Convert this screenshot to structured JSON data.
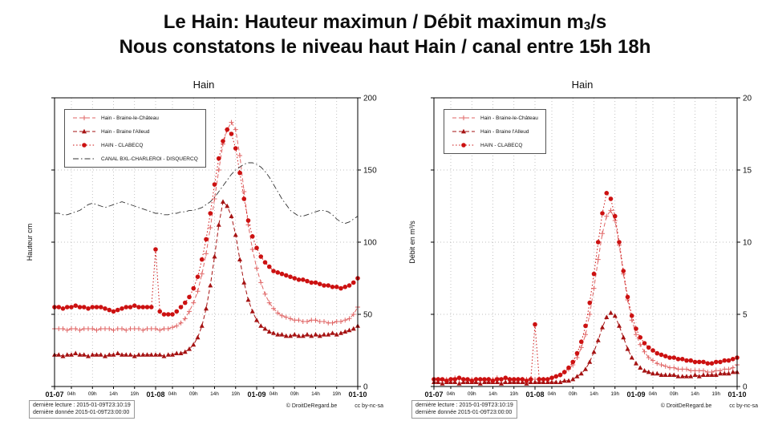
{
  "page": {
    "title_line1": {
      "prefix": "Le Hain: Hauteur maximun  / Débit maximun m",
      "sub": "3",
      "suffix": "/s"
    },
    "title_line2": "Nous constatons le niveau haut Hain / canal entre 15h 18h"
  },
  "footer": {
    "last_read": "dernière lecture : 2015-01-09T23:10:19",
    "last_data": "dernière donnée  2015-01-09T23:00:00",
    "copyright": "© DroitDeRegard.be",
    "license": "cc by-nc-sa"
  },
  "chart_data": [
    {
      "type": "line",
      "title": "Hain",
      "xlabel": "",
      "ylabel": "Hauteur cm",
      "ylim": [
        0,
        200
      ],
      "yticks": [
        0,
        50,
        100,
        150,
        200
      ],
      "xlim": [
        0,
        72
      ],
      "grid": true,
      "legend_position": "upper-left",
      "xticks": [
        {
          "t": 0,
          "label": "01-07",
          "day": true
        },
        {
          "t": 4,
          "label": "04h"
        },
        {
          "t": 9,
          "label": "09h"
        },
        {
          "t": 14,
          "label": "14h"
        },
        {
          "t": 19,
          "label": "19h"
        },
        {
          "t": 24,
          "label": "01-08",
          "day": true
        },
        {
          "t": 28,
          "label": "04h"
        },
        {
          "t": 33,
          "label": "09h"
        },
        {
          "t": 38,
          "label": "14h"
        },
        {
          "t": 43,
          "label": "19h"
        },
        {
          "t": 48,
          "label": "01-09",
          "day": true
        },
        {
          "t": 52,
          "label": "04h"
        },
        {
          "t": 57,
          "label": "09h"
        },
        {
          "t": 62,
          "label": "14h"
        },
        {
          "t": 67,
          "label": "19h"
        },
        {
          "t": 72,
          "label": "01-10",
          "day": true
        }
      ],
      "series": [
        {
          "name": "Hain - Braine-le-Château",
          "color": "#e06666",
          "line": "dashed",
          "marker": "plus",
          "values": [
            40,
            40,
            40,
            39,
            40,
            40,
            39,
            40,
            40,
            40,
            39,
            40,
            40,
            40,
            39,
            40,
            40,
            39,
            40,
            40,
            40,
            39,
            40,
            40,
            40,
            39,
            40,
            40,
            41,
            42,
            44,
            47,
            52,
            58,
            66,
            78,
            92,
            110,
            130,
            150,
            168,
            178,
            183,
            178,
            160,
            135,
            112,
            95,
            82,
            72,
            64,
            58,
            54,
            51,
            49,
            48,
            47,
            46,
            46,
            45,
            45,
            46,
            46,
            45,
            45,
            44,
            44,
            45,
            45,
            46,
            47,
            50,
            55
          ]
        },
        {
          "name": "Hain - Braine l'Alleud",
          "color": "#a51212",
          "line": "dashed",
          "marker": "triangle",
          "values": [
            22,
            22,
            21,
            22,
            22,
            23,
            22,
            22,
            21,
            22,
            22,
            22,
            21,
            22,
            22,
            23,
            22,
            22,
            22,
            21,
            22,
            22,
            22,
            22,
            22,
            22,
            21,
            22,
            22,
            23,
            23,
            24,
            26,
            29,
            34,
            42,
            54,
            70,
            90,
            112,
            128,
            125,
            118,
            105,
            88,
            72,
            60,
            52,
            46,
            42,
            40,
            38,
            37,
            36,
            36,
            35,
            35,
            36,
            35,
            35,
            36,
            35,
            36,
            35,
            36,
            36,
            37,
            36,
            37,
            38,
            39,
            40,
            42
          ]
        },
        {
          "name": "HAIN - CLABECQ",
          "color": "#cc1111",
          "line": "dotted",
          "marker": "circle",
          "values": [
            55,
            55,
            54,
            55,
            55,
            56,
            55,
            55,
            54,
            55,
            55,
            55,
            54,
            53,
            52,
            53,
            54,
            55,
            55,
            56,
            55,
            55,
            55,
            55,
            95,
            52,
            50,
            50,
            50,
            52,
            55,
            58,
            62,
            68,
            76,
            88,
            102,
            120,
            140,
            158,
            170,
            178,
            175,
            165,
            148,
            130,
            115,
            104,
            96,
            90,
            86,
            83,
            80,
            79,
            78,
            77,
            76,
            75,
            74,
            74,
            73,
            72,
            72,
            71,
            70,
            70,
            69,
            69,
            68,
            69,
            70,
            72,
            75
          ]
        },
        {
          "name": "CANAL BXL-CHARLEROI - DISQUERCQ",
          "color": "#333333",
          "line": "dashdot",
          "marker": "none",
          "values": [
            120,
            120,
            119,
            119,
            120,
            121,
            122,
            124,
            126,
            127,
            126,
            125,
            124,
            125,
            126,
            127,
            128,
            127,
            126,
            125,
            124,
            123,
            122,
            121,
            120,
            120,
            119,
            119,
            120,
            120,
            121,
            121,
            122,
            122,
            123,
            124,
            126,
            128,
            131,
            135,
            139,
            143,
            147,
            150,
            152,
            154,
            155,
            155,
            154,
            152,
            149,
            145,
            140,
            135,
            130,
            126,
            122,
            120,
            118,
            118,
            119,
            120,
            121,
            122,
            122,
            121,
            119,
            116,
            114,
            113,
            114,
            116,
            118
          ]
        }
      ]
    },
    {
      "type": "line",
      "title": "Hain",
      "xlabel": "",
      "ylabel": "Débit en m³/s",
      "ylim": [
        0,
        20
      ],
      "yticks": [
        0,
        5,
        10,
        15,
        20
      ],
      "xlim": [
        0,
        72
      ],
      "grid": true,
      "legend_position": "upper-left",
      "xticks": [
        {
          "t": 0,
          "label": "01-07",
          "day": true
        },
        {
          "t": 4,
          "label": "04h"
        },
        {
          "t": 9,
          "label": "09h"
        },
        {
          "t": 14,
          "label": "14h"
        },
        {
          "t": 19,
          "label": "19h"
        },
        {
          "t": 24,
          "label": "01-08",
          "day": true
        },
        {
          "t": 28,
          "label": "04h"
        },
        {
          "t": 33,
          "label": "09h"
        },
        {
          "t": 38,
          "label": "14h"
        },
        {
          "t": 43,
          "label": "19h"
        },
        {
          "t": 48,
          "label": "01-09",
          "day": true
        },
        {
          "t": 52,
          "label": "04h"
        },
        {
          "t": 57,
          "label": "09h"
        },
        {
          "t": 62,
          "label": "14h"
        },
        {
          "t": 67,
          "label": "19h"
        },
        {
          "t": 72,
          "label": "01-10",
          "day": true
        }
      ],
      "series": [
        {
          "name": "Hain - Braine-le-Château",
          "color": "#e06666",
          "line": "dashed",
          "marker": "plus",
          "values": [
            0.5,
            0.5,
            0.4,
            0.5,
            0.5,
            0.6,
            0.5,
            0.5,
            0.4,
            0.5,
            0.5,
            0.5,
            0.4,
            0.5,
            0.5,
            0.6,
            0.5,
            0.5,
            0.5,
            0.4,
            0.5,
            0.5,
            0.5,
            0.5,
            0.5,
            0.5,
            0.5,
            0.5,
            0.6,
            0.7,
            0.8,
            1.0,
            1.2,
            1.5,
            2.0,
            2.7,
            3.6,
            5.0,
            6.8,
            8.8,
            10.6,
            11.8,
            12.2,
            11.5,
            9.8,
            7.8,
            6.0,
            4.6,
            3.6,
            2.9,
            2.4,
            2.0,
            1.8,
            1.6,
            1.5,
            1.4,
            1.3,
            1.3,
            1.2,
            1.2,
            1.2,
            1.1,
            1.1,
            1.1,
            1.1,
            1.0,
            1.0,
            1.1,
            1.1,
            1.2,
            1.2,
            1.3,
            1.5
          ]
        },
        {
          "name": "Hain - Braine l'Alleud",
          "color": "#a51212",
          "line": "dashed",
          "marker": "triangle",
          "values": [
            0.3,
            0.3,
            0.2,
            0.3,
            0.3,
            0.3,
            0.2,
            0.3,
            0.3,
            0.3,
            0.3,
            0.2,
            0.3,
            0.3,
            0.3,
            0.3,
            0.2,
            0.3,
            0.3,
            0.3,
            0.3,
            0.3,
            0.2,
            0.3,
            0.3,
            0.3,
            0.3,
            0.3,
            0.3,
            0.3,
            0.3,
            0.4,
            0.4,
            0.5,
            0.7,
            0.9,
            1.2,
            1.7,
            2.4,
            3.2,
            4.1,
            4.8,
            5.1,
            4.9,
            4.2,
            3.4,
            2.6,
            2.0,
            1.6,
            1.3,
            1.1,
            1.0,
            0.9,
            0.9,
            0.8,
            0.8,
            0.8,
            0.8,
            0.7,
            0.7,
            0.7,
            0.7,
            0.8,
            0.7,
            0.8,
            0.8,
            0.8,
            0.8,
            0.9,
            0.9,
            0.9,
            1.0,
            1.0
          ]
        },
        {
          "name": "HAIN - CLABECQ",
          "color": "#cc1111",
          "line": "dotted",
          "marker": "circle",
          "values": [
            0.5,
            0.5,
            0.5,
            0.4,
            0.5,
            0.5,
            0.6,
            0.5,
            0.5,
            0.4,
            0.5,
            0.5,
            0.5,
            0.5,
            0.4,
            0.5,
            0.5,
            0.6,
            0.5,
            0.5,
            0.5,
            0.5,
            0.4,
            0.5,
            4.3,
            0.5,
            0.5,
            0.5,
            0.6,
            0.7,
            0.8,
            1.0,
            1.3,
            1.7,
            2.3,
            3.1,
            4.2,
            5.8,
            7.8,
            10.0,
            12.0,
            13.4,
            13.0,
            11.8,
            10.0,
            8.0,
            6.2,
            4.9,
            4.0,
            3.4,
            3.0,
            2.7,
            2.5,
            2.3,
            2.2,
            2.1,
            2.0,
            2.0,
            1.9,
            1.9,
            1.8,
            1.8,
            1.7,
            1.7,
            1.7,
            1.6,
            1.6,
            1.7,
            1.7,
            1.8,
            1.8,
            1.9,
            2.0
          ]
        }
      ]
    }
  ]
}
